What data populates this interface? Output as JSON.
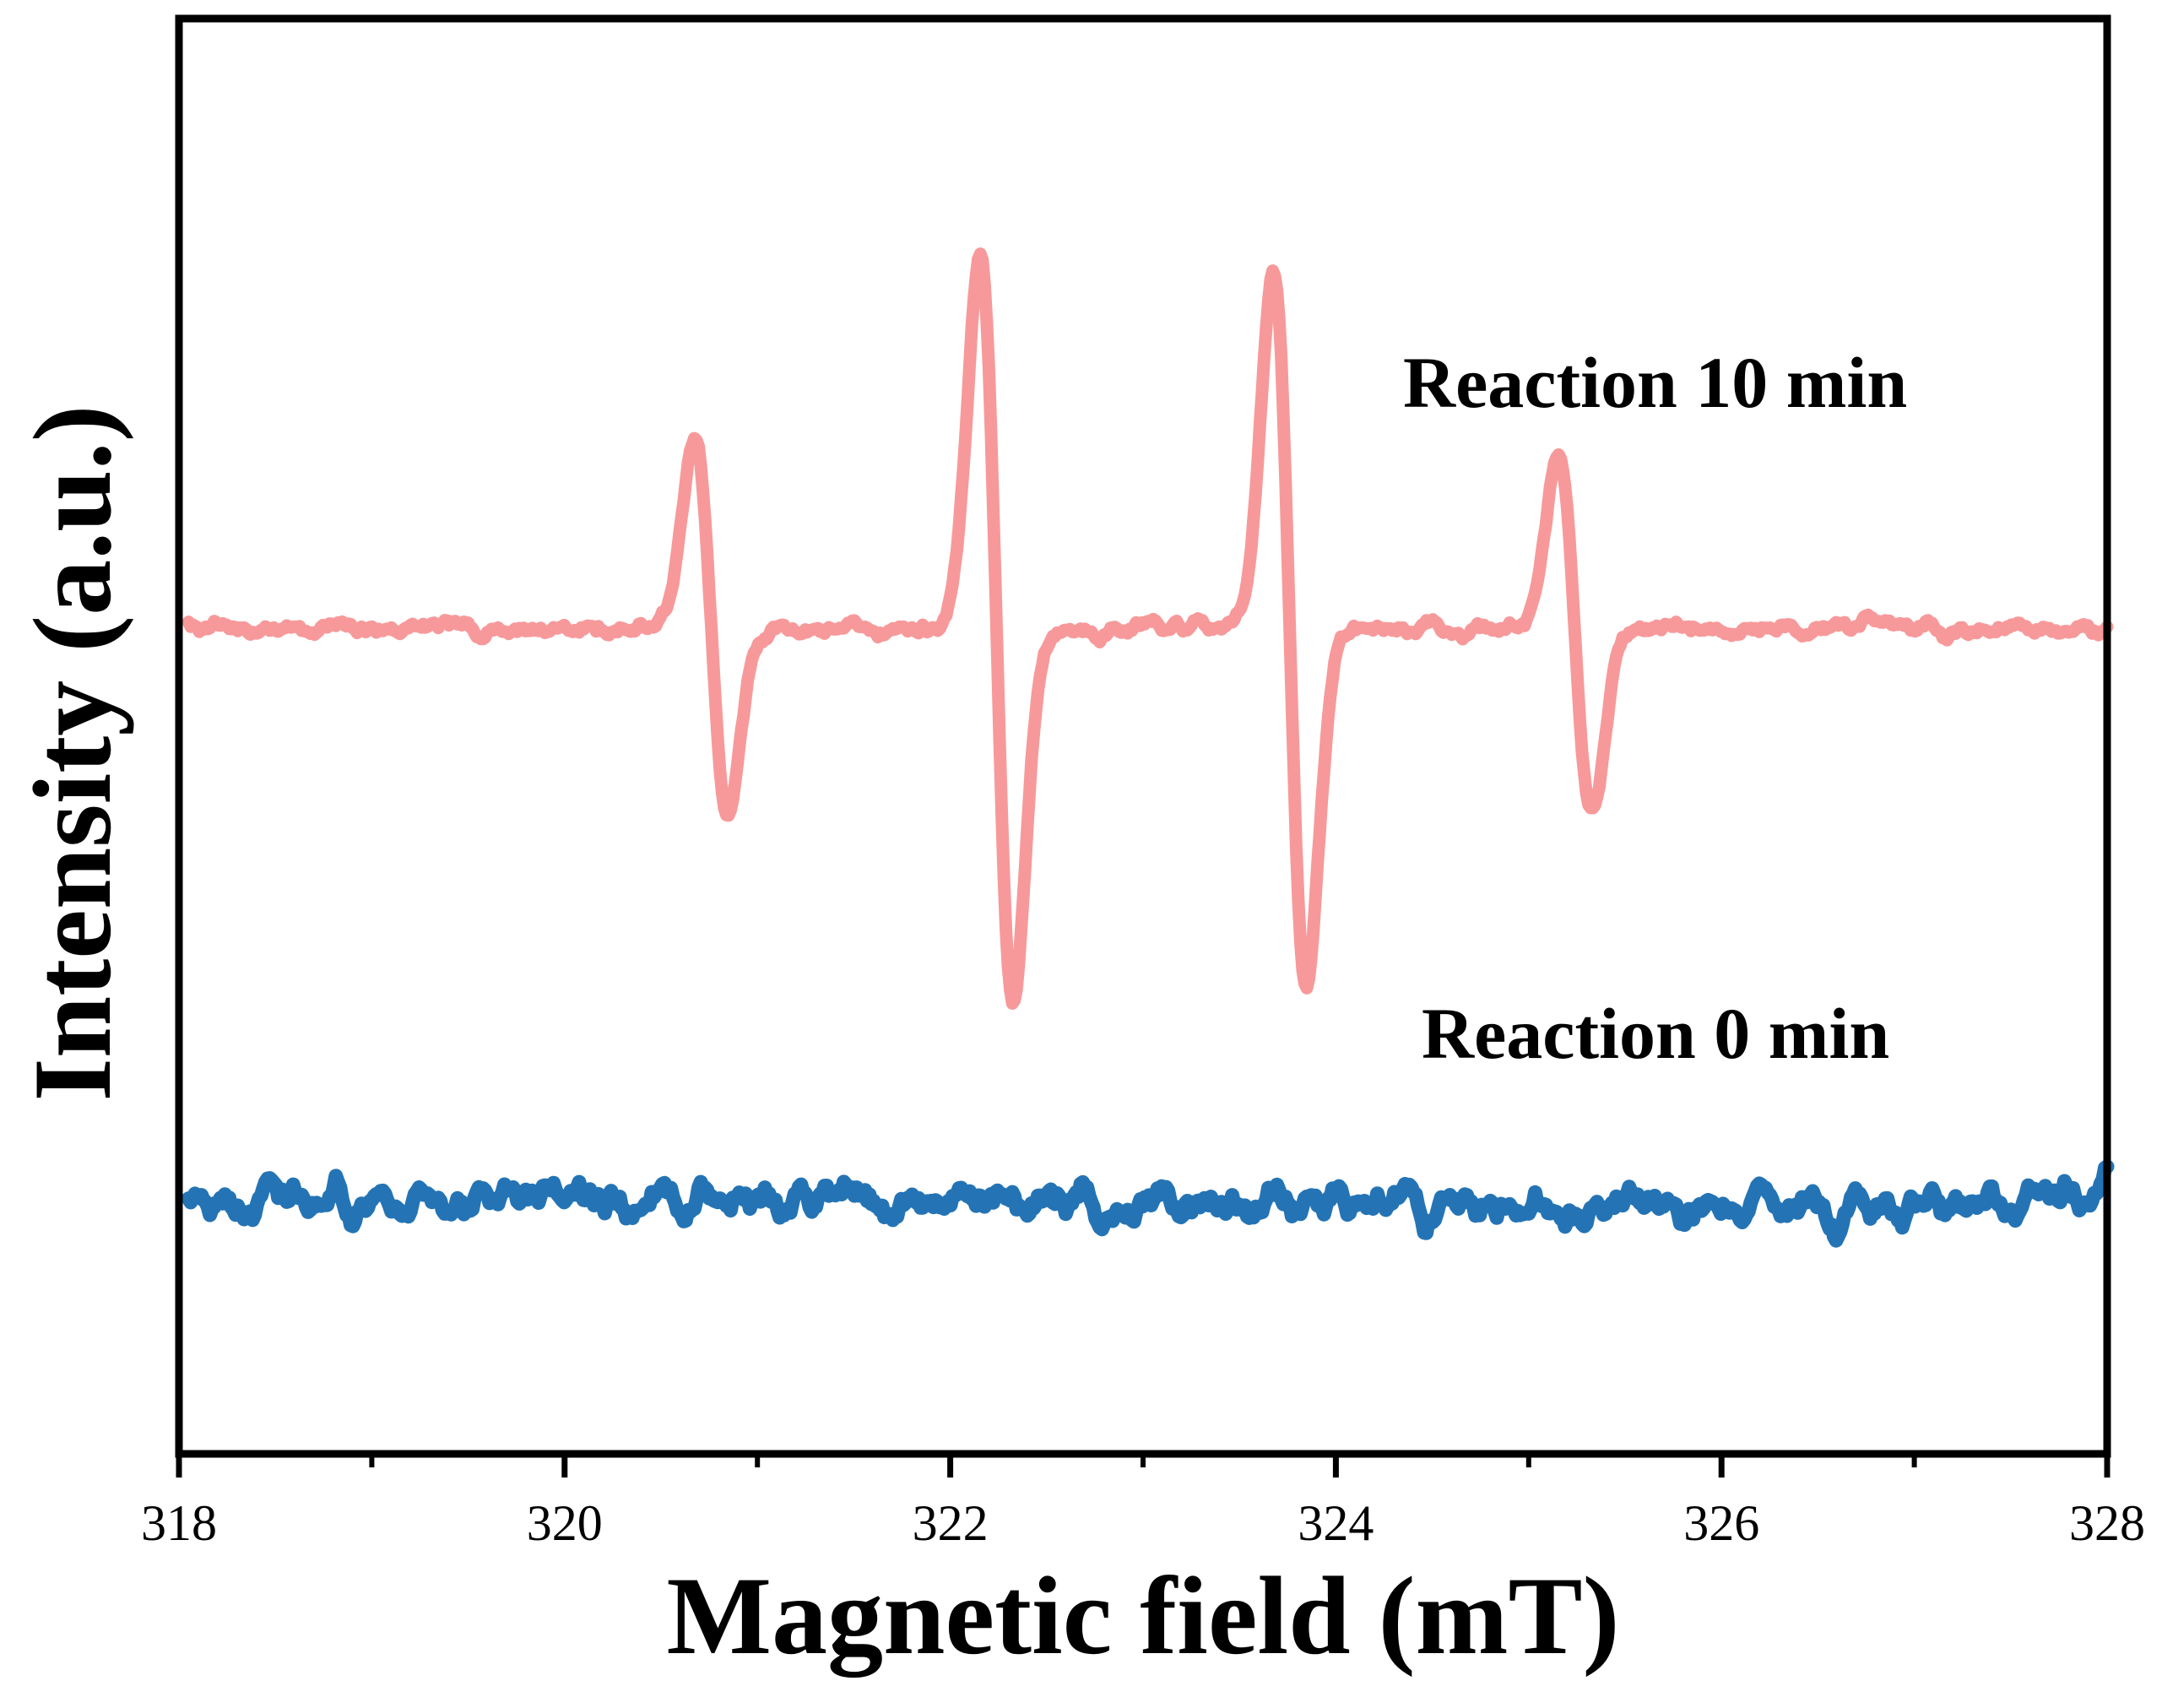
{
  "chart_data": {
    "type": "line",
    "title": "",
    "xlabel": "Magnetic field (mT)",
    "ylabel": "Intensity (a.u.)",
    "xlim": [
      318,
      328
    ],
    "ylim": [
      -0.9,
      1.1
    ],
    "x_ticks": [
      318,
      320,
      322,
      324,
      326,
      328
    ],
    "x_minor_ticks": [
      319,
      321,
      323,
      325,
      327
    ],
    "y_ticks": [],
    "grid": false,
    "legend": "inline labels beside traces",
    "series": [
      {
        "name": "Reaction 10 min",
        "color": "#f7999a",
        "baseline": 0.25,
        "noise_amplitude": 0.012,
        "peaks": [
          {
            "center": 320.76,
            "amplitude": 0.26,
            "width": 0.085
          },
          {
            "center": 322.24,
            "amplitude": 0.52,
            "width": 0.085
          },
          {
            "center": 323.76,
            "amplitude": 0.5,
            "width": 0.085
          },
          {
            "center": 325.24,
            "amplitude": 0.25,
            "width": 0.085
          }
        ]
      },
      {
        "name": "Reaction 0 min",
        "color": "#2474b5",
        "baseline": -0.55,
        "noise_amplitude": 0.03,
        "peaks": []
      }
    ],
    "annotations": [
      {
        "text": "Reaction 10 min",
        "series": 0
      },
      {
        "text": "Reaction 0 min",
        "series": 1
      }
    ]
  }
}
